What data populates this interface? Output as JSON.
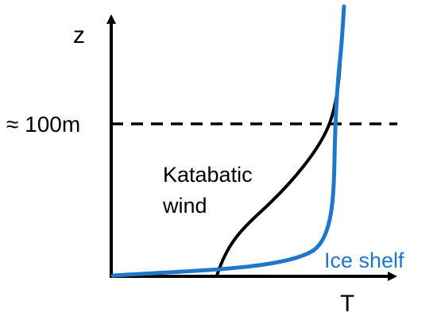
{
  "diagram": {
    "y_axis_label": "z",
    "x_axis_label": "T",
    "reference_label": "≈ 100m",
    "katabatic_label_line1": "Katabatic",
    "katabatic_label_line2": "wind",
    "ice_shelf_label": "Ice shelf",
    "colors": {
      "axes": "#000000",
      "katabatic_curve": "#000000",
      "ice_shelf_curve": "#1f77c9",
      "ice_shelf_label": "#1f77c9"
    }
  }
}
